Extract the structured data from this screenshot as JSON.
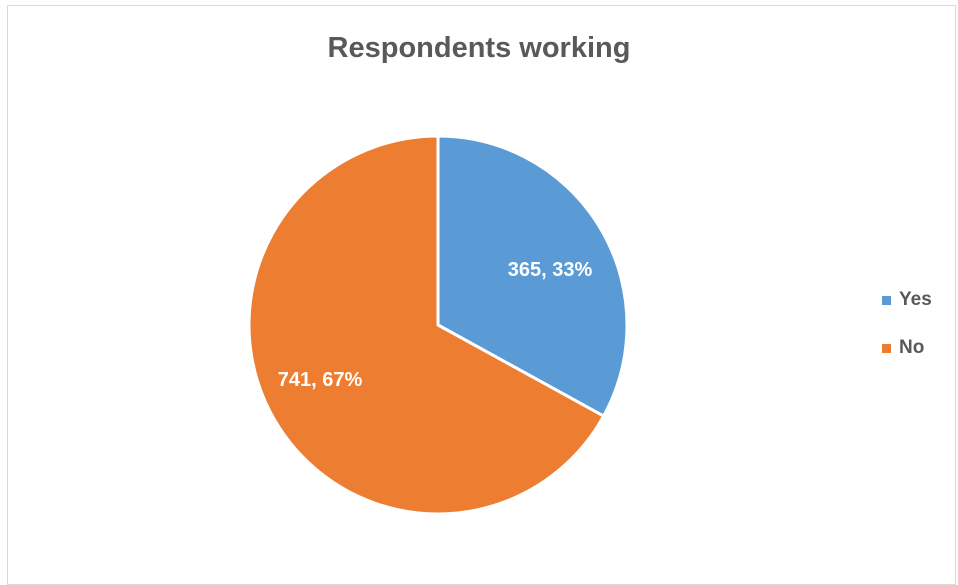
{
  "chart_data": {
    "type": "pie",
    "title": "Respondents working",
    "categories": [
      "Yes",
      "No"
    ],
    "values": [
      365,
      741
    ],
    "percentages": [
      "33%",
      "67%"
    ],
    "data_labels": [
      "365, 33%",
      "741, 67%"
    ],
    "colors": [
      "#5b9bd5",
      "#ed7d31"
    ],
    "legend_position": "right"
  }
}
